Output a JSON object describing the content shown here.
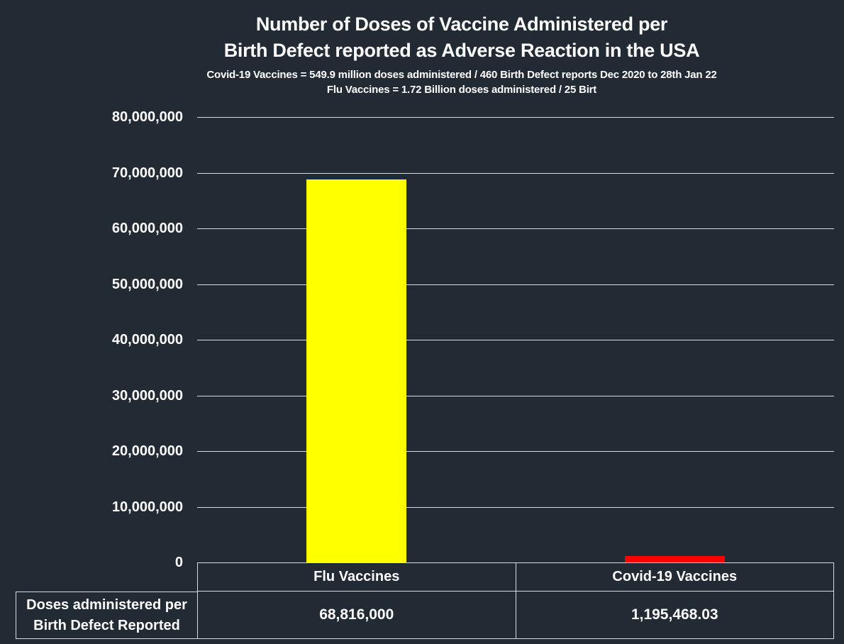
{
  "colors": {
    "background": "#222a34",
    "gridline": "#d6dce5",
    "text": "#ffffff",
    "flu_bar": "#ffff00",
    "covid_bar": "#ff0000"
  },
  "chart_data": {
    "type": "bar",
    "title_line1": "Number of Doses of Vaccine Administered per",
    "title_line2": "Birth Defect reported as Adverse Reaction in the USA",
    "subtitle_line1": "Covid-19 Vaccines = 549.9 million doses administered / 460 Birth Defect reports Dec 2020 to 28th Jan 22",
    "subtitle_line2": "Flu Vaccines = 1.72 Billion doses administered / 25 Birt",
    "categories": [
      "Flu Vaccines",
      "Covid-19 Vaccines"
    ],
    "values": [
      68816000,
      1195468.03
    ],
    "value_labels": [
      "68,816,000",
      "1,195,468.03"
    ],
    "bar_colors": [
      "#ffff00",
      "#ff0000"
    ],
    "series_row_label_line1": "Doses administered per",
    "series_row_label_line2": "Birth Defect Reported",
    "ylim": [
      0,
      80000000
    ],
    "ytick_step": 10000000,
    "ytick_labels": [
      "0",
      "10,000,000",
      "20,000,000",
      "30,000,000",
      "40,000,000",
      "50,000,000",
      "60,000,000",
      "70,000,000",
      "80,000,000"
    ],
    "grid": true,
    "legend": "data-table-below-axis"
  }
}
